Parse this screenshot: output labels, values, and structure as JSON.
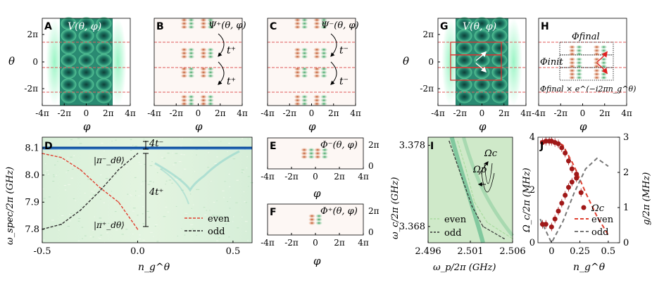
{
  "colors": {
    "teal_dark": "#0f4d46",
    "teal_mid": "#2f9a80",
    "teal_light": "#78e0b0",
    "red_line": "#e05a5a",
    "orange": "#c9602a",
    "green_lobe": "#3fae6a",
    "grid_bg": "#e8f6ea",
    "even": "#e04030",
    "odd": "#333333",
    "dot_red": "#a01818",
    "gray_dash": "#777777"
  },
  "panels": {
    "A": {
      "letter": "A",
      "title": "V(θ, φ)"
    },
    "B": {
      "letter": "B",
      "title": "Ψ⁺(θ, φ)",
      "hop1": "t⁺",
      "hop2": "t⁺"
    },
    "C": {
      "letter": "C",
      "title": "Ψ⁻(θ, φ)",
      "hop1": "t⁻",
      "hop2": "t⁻"
    },
    "G": {
      "letter": "G",
      "title": "V(θ, φ)"
    },
    "H": {
      "letter": "H",
      "final": "Φfinal",
      "init": "Φinit",
      "final_phase": "Φfinal × e^(−i2πn_g^θ)"
    },
    "D": {
      "letter": "D"
    },
    "E": {
      "letter": "E",
      "title": "Φ⁻(θ, φ)"
    },
    "F": {
      "letter": "F",
      "title": "Φ⁺(θ, φ)"
    },
    "I": {
      "letter": "I",
      "omega_c": "Ωc",
      "omega_p": "Ωp"
    },
    "J": {
      "letter": "J"
    }
  },
  "axes": {
    "theta_label": "θ",
    "phi_label": "φ",
    "theta_ticks": [
      "2π",
      "0",
      "-2π"
    ],
    "phi_ticks": [
      "-4π",
      "-2π",
      "0",
      "2π",
      "4π"
    ],
    "E_right_ticks": [
      "2π",
      "0"
    ]
  },
  "chart_data": [
    {
      "type": "line",
      "panel": "D",
      "title": "",
      "xlabel": "n_g^θ",
      "ylabel": "ω_spec/2π (GHz)",
      "xlim": [
        -0.5,
        0.6
      ],
      "ylim": [
        7.75,
        8.14
      ],
      "x_ticks": [
        "-0.5",
        "0.0",
        "0.5"
      ],
      "y_ticks": [
        "8.1",
        "8.0",
        "7.9",
        "7.8"
      ],
      "series": [
        {
          "name": "even",
          "x": [
            -0.5,
            -0.4,
            -0.3,
            -0.2,
            -0.1,
            0.0
          ],
          "values": [
            8.08,
            8.065,
            8.02,
            7.955,
            7.9,
            7.8
          ]
        },
        {
          "name": "odd",
          "x": [
            -0.5,
            -0.4,
            -0.3,
            -0.2,
            -0.1,
            0.0
          ],
          "values": [
            7.8,
            7.818,
            7.87,
            7.94,
            8.02,
            8.08
          ]
        }
      ],
      "annotations": {
        "t_minus": "4t⁻",
        "t_plus": "4t⁺",
        "pi_minus": "|π⁻_dθ⟩",
        "pi_plus": "|π⁺_dθ⟩"
      },
      "legend": [
        "even",
        "odd"
      ]
    },
    {
      "type": "line",
      "panel": "I",
      "xlabel": "ω_p/2π (GHz)",
      "ylabel": "ω_c/2π (GHz)",
      "x_ticks": [
        "2.496",
        "2.501",
        "2.506"
      ],
      "y_ticks": [
        "3.378",
        "3.368"
      ],
      "xlim": [
        2.496,
        2.506
      ],
      "ylim": [
        3.366,
        3.379
      ],
      "series": [
        {
          "name": "even",
          "x": [
            2.4995,
            2.5005,
            2.5015,
            2.503,
            2.506
          ],
          "values": [
            3.3785,
            3.375,
            3.371,
            3.3685,
            3.3665
          ]
        },
        {
          "name": "odd",
          "x": [
            2.4985,
            2.5,
            2.5012,
            2.5025,
            2.505
          ],
          "values": [
            3.3785,
            3.374,
            3.3705,
            3.368,
            3.3665
          ]
        }
      ],
      "legend": [
        "even",
        "odd"
      ]
    },
    {
      "type": "scatter",
      "panel": "J",
      "xlabel": "n_g^θ",
      "ylabel_left": "Ω_c/2π (MHz)",
      "ylabel_right": "g/2π (MHz)",
      "x_ticks": [
        "0",
        "0.25",
        "0.5"
      ],
      "y_ticks_left": [
        "4",
        "2",
        "0"
      ],
      "y_ticks_right": [
        "3",
        "2",
        "1",
        "0"
      ],
      "xlim": [
        -0.12,
        0.6
      ],
      "ylim_left": [
        0,
        4
      ],
      "ylim_right": [
        0,
        3
      ],
      "series": [
        {
          "name": "Ωc data upper",
          "x": [
            -0.08,
            -0.05,
            -0.02,
            0.0,
            0.03,
            0.06,
            0.09,
            0.12,
            0.15,
            0.18,
            0.22,
            0.26
          ],
          "values": [
            3.8,
            3.85,
            3.85,
            3.85,
            3.8,
            3.75,
            3.6,
            3.4,
            3.1,
            2.8,
            2.45,
            1.9
          ]
        },
        {
          "name": "Ωc data lower",
          "x": [
            -0.08,
            -0.05,
            0.0,
            0.03,
            0.06,
            0.09,
            0.12,
            0.15,
            0.18,
            0.22
          ],
          "values": [
            0.7,
            0.7,
            0.6,
            0.9,
            1.2,
            1.5,
            1.8,
            2.1,
            2.3,
            2.6
          ]
        },
        {
          "name": "even",
          "x": [
            -0.1,
            0.0,
            0.1,
            0.2,
            0.3,
            0.4,
            0.5
          ],
          "values": [
            3.85,
            3.9,
            3.7,
            2.9,
            1.9,
            1.0,
            0.3
          ]
        },
        {
          "name": "odd",
          "x": [
            -0.1,
            0.0,
            0.1,
            0.2,
            0.3,
            0.4,
            0.5
          ],
          "values": [
            0.9,
            0.0,
            0.8,
            1.9,
            2.8,
            3.2,
            2.9
          ]
        }
      ],
      "legend_label": "Ωc",
      "legend": [
        "even",
        "odd"
      ]
    }
  ]
}
